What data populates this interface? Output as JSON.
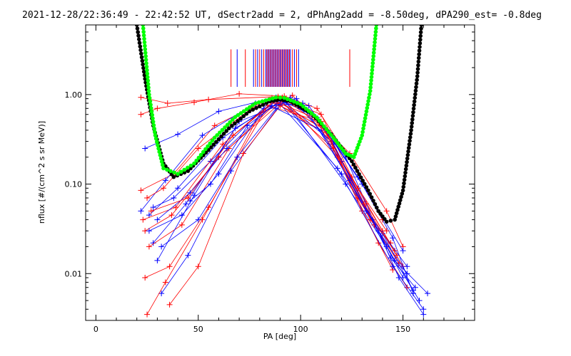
{
  "chart_data": {
    "type": "scatter",
    "title": "2021-12-28/22:36:49 - 22:42:52 UT, dSectr2add = 2, dPhAng2add = -8.50deg, dPA290_est=  -0.8deg",
    "xlabel": "PA [deg]",
    "ylabel": "nflux [#/(cm^2 s sr MeV)]",
    "xlim": [
      -5,
      185
    ],
    "ylim": [
      0.003,
      6.0
    ],
    "yscale": "log",
    "x_ticks": [
      0,
      50,
      100,
      150
    ],
    "x_tick_labels": [
      "0",
      "50",
      "100",
      "150"
    ],
    "y_ticks": [
      0.01,
      0.1,
      1.0
    ],
    "y_tick_labels": [
      "0.01",
      "0.10",
      "1.00"
    ],
    "grid": false,
    "series_colors": {
      "red": "#ff0000",
      "blue": "#0000ff",
      "black": "#000000",
      "green": "#00ff00"
    },
    "sector_marks": {
      "color_sequence": [
        "red",
        "blue"
      ],
      "pa": [
        66,
        69,
        73,
        77,
        78,
        79,
        80,
        81,
        82,
        83,
        83.5,
        84,
        84.5,
        85,
        85.5,
        86,
        86.5,
        87,
        87.5,
        88,
        88.5,
        89,
        89.5,
        90,
        90.5,
        91,
        91.5,
        92,
        92.5,
        93,
        93.5,
        94,
        94.5,
        95,
        96,
        97,
        98,
        99,
        124
      ]
    },
    "pitch_angle_profiles": {
      "description": "Per-sector pitch-angle spectra; each polyline connects + markers from low PA, through ~90 deg peak, down to high PA",
      "color_cycle": [
        "red",
        "blue"
      ],
      "lines": [
        {
          "color": "red",
          "points": [
            [
              22,
              0.93
            ],
            [
              35,
              0.8
            ],
            [
              55,
              0.88
            ],
            [
              89,
              0.95
            ],
            [
              110,
              0.6
            ],
            [
              125,
              0.12
            ],
            [
              140,
              0.03
            ],
            [
              150,
              0.012
            ]
          ]
        },
        {
          "color": "blue",
          "points": [
            [
              24,
              0.25
            ],
            [
              40,
              0.36
            ],
            [
              60,
              0.65
            ],
            [
              88,
              0.93
            ],
            [
              108,
              0.55
            ],
            [
              130,
              0.1
            ],
            [
              145,
              0.025
            ],
            [
              155,
              0.006
            ]
          ]
        },
        {
          "color": "red",
          "points": [
            [
              22,
              0.085
            ],
            [
              38,
              0.13
            ],
            [
              58,
              0.45
            ],
            [
              86,
              0.92
            ],
            [
              112,
              0.4
            ],
            [
              132,
              0.06
            ],
            [
              146,
              0.018
            ]
          ]
        },
        {
          "color": "blue",
          "points": [
            [
              26,
              0.045
            ],
            [
              40,
              0.09
            ],
            [
              62,
              0.33
            ],
            [
              90,
              0.9
            ],
            [
              115,
              0.3
            ],
            [
              135,
              0.04
            ],
            [
              150,
              0.009
            ]
          ]
        },
        {
          "color": "red",
          "points": [
            [
              24,
              0.03
            ],
            [
              37,
              0.045
            ],
            [
              60,
              0.2
            ],
            [
              92,
              0.88
            ],
            [
              118,
              0.2
            ],
            [
              138,
              0.022
            ],
            [
              152,
              0.007
            ]
          ]
        },
        {
          "color": "blue",
          "points": [
            [
              28,
              0.022
            ],
            [
              44,
              0.06
            ],
            [
              68,
              0.42
            ],
            [
              91,
              0.85
            ],
            [
              120,
              0.13
            ],
            [
              140,
              0.028
            ],
            [
              155,
              0.0065
            ]
          ]
        },
        {
          "color": "red",
          "points": [
            [
              26,
              0.02
            ],
            [
              42,
              0.035
            ],
            [
              65,
              0.25
            ],
            [
              88,
              0.8
            ],
            [
              114,
              0.35
            ],
            [
              136,
              0.035
            ],
            [
              148,
              0.013
            ]
          ]
        },
        {
          "color": "blue",
          "points": [
            [
              30,
              0.014
            ],
            [
              48,
              0.075
            ],
            [
              70,
              0.5
            ],
            [
              93,
              0.82
            ],
            [
              122,
              0.1
            ],
            [
              142,
              0.02
            ],
            [
              158,
              0.005
            ]
          ]
        },
        {
          "color": "red",
          "points": [
            [
              24,
              0.009
            ],
            [
              36,
              0.012
            ],
            [
              55,
              0.055
            ],
            [
              84,
              0.75
            ],
            [
              110,
              0.5
            ],
            [
              130,
              0.05
            ],
            [
              145,
              0.011
            ]
          ]
        },
        {
          "color": "blue",
          "points": [
            [
              32,
              0.006
            ],
            [
              45,
              0.016
            ],
            [
              66,
              0.14
            ],
            [
              90,
              0.78
            ],
            [
              118,
              0.15
            ],
            [
              145,
              0.012
            ],
            [
              160,
              0.004
            ]
          ]
        },
        {
          "color": "red",
          "points": [
            [
              25,
              0.0035
            ],
            [
              34,
              0.008
            ],
            [
              52,
              0.04
            ],
            [
              80,
              0.6
            ],
            [
              96,
              0.98
            ],
            [
              124,
              0.22
            ],
            [
              142,
              0.05
            ],
            [
              150,
              0.02
            ]
          ]
        },
        {
          "color": "blue",
          "points": [
            [
              28,
              0.055
            ],
            [
              38,
              0.07
            ],
            [
              56,
              0.18
            ],
            [
              86,
              0.88
            ],
            [
              104,
              0.75
            ],
            [
              128,
              0.12
            ],
            [
              150,
              0.018
            ]
          ]
        },
        {
          "color": "red",
          "points": [
            [
              22,
              0.6
            ],
            [
              30,
              0.7
            ],
            [
              48,
              0.82
            ],
            [
              70,
              1.02
            ],
            [
              92,
              0.96
            ],
            [
              108,
              0.7
            ],
            [
              126,
              0.16
            ],
            [
              140,
              0.04
            ]
          ]
        },
        {
          "color": "blue",
          "points": [
            [
              22,
              0.05
            ],
            [
              34,
              0.11
            ],
            [
              52,
              0.35
            ],
            [
              78,
              0.8
            ],
            [
              95,
              0.92
            ],
            [
              116,
              0.28
            ],
            [
              138,
              0.03
            ],
            [
              152,
              0.01
            ]
          ]
        },
        {
          "color": "red",
          "points": [
            [
              23,
              0.04
            ],
            [
              39,
              0.055
            ],
            [
              62,
              0.28
            ],
            [
              89,
              0.9
            ],
            [
              116,
              0.25
            ],
            [
              134,
              0.04
            ],
            [
              144,
              0.022
            ]
          ]
        },
        {
          "color": "blue",
          "points": [
            [
              26,
              0.03
            ],
            [
              42,
              0.045
            ],
            [
              60,
              0.13
            ],
            [
              82,
              0.7
            ],
            [
              98,
              0.9
            ],
            [
              120,
              0.18
            ],
            [
              144,
              0.015
            ],
            [
              156,
              0.007
            ]
          ]
        },
        {
          "color": "red",
          "points": [
            [
              36,
              0.0045
            ],
            [
              50,
              0.012
            ],
            [
              72,
              0.22
            ],
            [
              90,
              0.75
            ],
            [
              112,
              0.42
            ],
            [
              128,
              0.07
            ],
            [
              136,
              0.035
            ]
          ]
        },
        {
          "color": "blue",
          "points": [
            [
              46,
              0.065
            ],
            [
              56,
              0.1
            ],
            [
              74,
              0.45
            ],
            [
              90,
              0.86
            ],
            [
              106,
              0.6
            ],
            [
              122,
              0.2
            ],
            [
              148,
              0.009
            ],
            [
              160,
              0.0035
            ]
          ]
        },
        {
          "color": "red",
          "points": [
            [
              25,
              0.07
            ],
            [
              33,
              0.09
            ],
            [
              50,
              0.25
            ],
            [
              76,
              0.7
            ],
            [
              91,
              0.93
            ],
            [
              110,
              0.45
            ],
            [
              128,
              0.09
            ],
            [
              142,
              0.03
            ]
          ]
        },
        {
          "color": "blue",
          "points": [
            [
              30,
              0.04
            ],
            [
              46,
              0.08
            ],
            [
              64,
              0.25
            ],
            [
              86,
              0.75
            ],
            [
              101,
              0.8
            ],
            [
              124,
              0.11
            ],
            [
              146,
              0.014
            ],
            [
              162,
              0.006
            ]
          ]
        },
        {
          "color": "blue",
          "points": [
            [
              32,
              0.02
            ],
            [
              50,
              0.04
            ],
            [
              69,
              0.2
            ],
            [
              88,
              0.7
            ],
            [
              110,
              0.4
            ],
            [
              132,
              0.05
            ],
            [
              152,
              0.012
            ]
          ]
        },
        {
          "color": "red",
          "points": [
            [
              27,
              0.05
            ],
            [
              45,
              0.07
            ],
            [
              67,
              0.35
            ],
            [
              87,
              0.85
            ],
            [
              107,
              0.55
            ],
            [
              131,
              0.06
            ],
            [
              147,
              0.016
            ]
          ]
        }
      ]
    },
    "fit_curves": [
      {
        "name": "",
        "color": "black",
        "points": [
          [
            20,
            6.0
          ],
          [
            24,
            1.5
          ],
          [
            28,
            0.45
          ],
          [
            33,
            0.17
          ],
          [
            38,
            0.12
          ],
          [
            45,
            0.14
          ],
          [
            55,
            0.24
          ],
          [
            65,
            0.42
          ],
          [
            75,
            0.65
          ],
          [
            85,
            0.84
          ],
          [
            90,
            0.88
          ],
          [
            95,
            0.84
          ],
          [
            105,
            0.62
          ],
          [
            115,
            0.36
          ],
          [
            125,
            0.18
          ],
          [
            133,
            0.085
          ],
          [
            138,
            0.05
          ],
          [
            142,
            0.038
          ],
          [
            146,
            0.04
          ],
          [
            150,
            0.085
          ],
          [
            154,
            0.4
          ],
          [
            157,
            1.6
          ],
          [
            159,
            6.0
          ]
        ]
      },
      {
        "name": "",
        "color": "green",
        "points": [
          [
            23,
            6.0
          ],
          [
            26,
            1.0
          ],
          [
            29,
            0.35
          ],
          [
            33,
            0.15
          ],
          [
            40,
            0.13
          ],
          [
            48,
            0.17
          ],
          [
            58,
            0.33
          ],
          [
            68,
            0.56
          ],
          [
            78,
            0.8
          ],
          [
            88,
            0.93
          ],
          [
            92,
            0.92
          ],
          [
            100,
            0.78
          ],
          [
            108,
            0.55
          ],
          [
            116,
            0.33
          ],
          [
            122,
            0.22
          ],
          [
            126,
            0.2
          ],
          [
            130,
            0.35
          ],
          [
            134,
            1.1
          ],
          [
            137,
            6.0
          ]
        ]
      }
    ]
  }
}
